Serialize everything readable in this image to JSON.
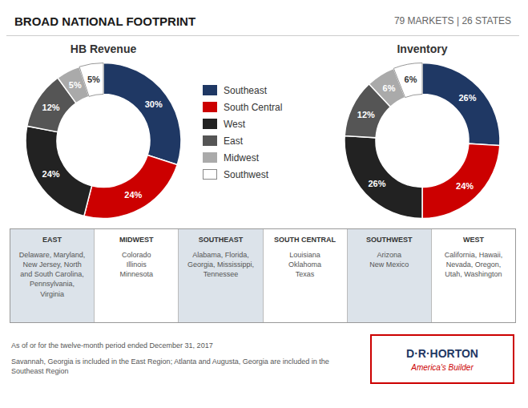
{
  "title": "BROAD NATIONAL FOOTPRINT",
  "subtitle": "79 MARKETS | 26 STATES",
  "chart_data": [
    {
      "type": "pie",
      "title": "HB Revenue",
      "categories": [
        "Southeast",
        "South Central",
        "West",
        "East",
        "Midwest",
        "Southwest"
      ],
      "values": [
        30,
        24,
        24,
        12,
        5,
        5
      ],
      "value_labels": [
        "30%",
        "24%",
        "24%",
        "12%",
        "5%",
        "5%"
      ],
      "colors": [
        "#1f3864",
        "#cc0000",
        "#222222",
        "#555555",
        "#aaaaaa",
        "#ffffff"
      ],
      "data_labels": true
    },
    {
      "type": "pie",
      "title": "Inventory",
      "categories": [
        "Southeast",
        "South Central",
        "West",
        "East",
        "Midwest",
        "Southwest"
      ],
      "values": [
        26,
        24,
        26,
        12,
        6,
        6
      ],
      "value_labels": [
        "26%",
        "24%",
        "26%",
        "12%",
        "6%",
        "6%"
      ],
      "colors": [
        "#1f3864",
        "#cc0000",
        "#222222",
        "#555555",
        "#aaaaaa",
        "#ffffff"
      ],
      "data_labels": true
    }
  ],
  "table": {
    "headers": [
      "EAST",
      "MIDWEST",
      "SOUTHEAST",
      "SOUTH CENTRAL",
      "SOUTHWEST",
      "WEST"
    ],
    "rows": [
      "Delaware, Maryland,\nNew Jersey, North\nand South Carolina,\nPennsylvania,\nVirginia",
      "Colorado\nIllinois\nMinnesota",
      "Alabama, Florida,\nGeorgia, Mississippi,\nTennessee",
      "Louisiana\nOklahoma\nTexas",
      "Arizona\nNew Mexico",
      "California, Hawaii,\nNevada, Oregon,\nUtah, Washington"
    ]
  },
  "notes": [
    "As of or for the twelve-month period ended December 31, 2017",
    "Savannah, Georgia is included in the East Region; Atlanta and Augusta, Georgia are included in the Southeast Region"
  ],
  "annotations": [
    "D·R·HORTON",
    "America's Builder"
  ]
}
